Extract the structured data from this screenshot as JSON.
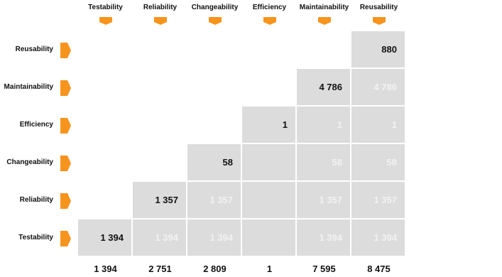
{
  "chart_data": {
    "type": "table",
    "columns": [
      "Testability",
      "Reliability",
      "Changeability",
      "Efficiency",
      "Maintainability",
      "Reusability"
    ],
    "rows": [
      "Reusability",
      "Maintainability",
      "Efficiency",
      "Changeability",
      "Reliability",
      "Testability"
    ],
    "cells": [
      [
        null,
        null,
        null,
        null,
        null,
        "880"
      ],
      [
        null,
        null,
        null,
        null,
        "4 786",
        "4 786"
      ],
      [
        null,
        null,
        null,
        "1",
        "1",
        "1"
      ],
      [
        null,
        null,
        "58",
        null,
        "58",
        "58"
      ],
      [
        null,
        "1 357",
        "1 357",
        null,
        "1 357",
        "1 357"
      ],
      [
        "1 394",
        "1 394",
        "1 394",
        null,
        "1 394",
        "1 394"
      ]
    ],
    "shaded": [
      [
        false,
        false,
        false,
        false,
        false,
        true
      ],
      [
        false,
        false,
        false,
        false,
        true,
        true
      ],
      [
        false,
        false,
        false,
        true,
        true,
        true
      ],
      [
        false,
        false,
        true,
        true,
        true,
        true
      ],
      [
        false,
        true,
        true,
        true,
        true,
        true
      ],
      [
        true,
        true,
        true,
        true,
        true,
        true
      ]
    ],
    "totals": [
      "1 394",
      "2 751",
      "2 809",
      "1",
      "7 595",
      "8 475"
    ]
  },
  "colors": {
    "cell_background": "#dcdcdc",
    "marker": "#f7941d",
    "primary_text": "#111111",
    "secondary_text": "#f2f2f2"
  },
  "icons": {
    "column_marker": "chevron-down-tab-icon",
    "row_marker": "chevron-right-tab-icon"
  }
}
